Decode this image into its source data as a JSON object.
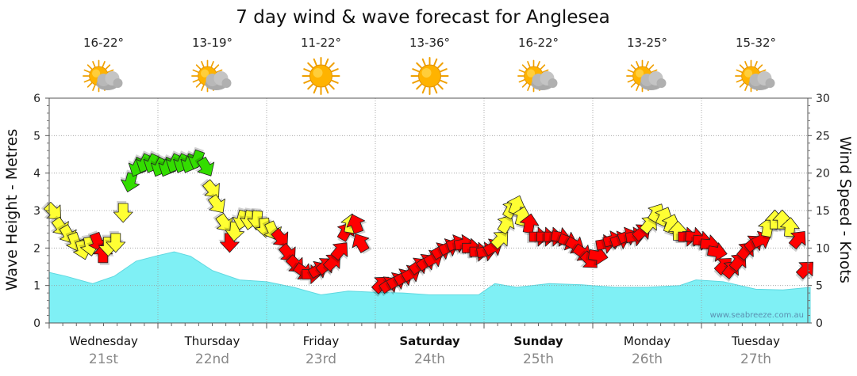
{
  "chart_data": {
    "type": "line",
    "title": "7 day wind & wave forecast for Anglesea",
    "ylabel_left": "Wave Height - Metres",
    "ylabel_right": "Wind Speed - Knots",
    "ylim_left": [
      0,
      6
    ],
    "ylim_right": [
      0,
      30
    ],
    "yticks_left": [
      "0",
      "1",
      "2",
      "3",
      "4",
      "5",
      "6"
    ],
    "yticks_right": [
      "0",
      "5",
      "10",
      "15",
      "20",
      "25",
      "30"
    ],
    "days": [
      {
        "day": "Wednesday",
        "date": "21st",
        "temp": "16-22°",
        "icon": "partly-cloudy",
        "bold": false
      },
      {
        "day": "Thursday",
        "date": "22nd",
        "temp": "13-19°",
        "icon": "partly-cloudy",
        "bold": false
      },
      {
        "day": "Friday",
        "date": "23rd",
        "temp": "11-22°",
        "icon": "sunny",
        "bold": false
      },
      {
        "day": "Saturday",
        "date": "24th",
        "temp": "13-36°",
        "icon": "sunny",
        "bold": true
      },
      {
        "day": "Sunday",
        "date": "25th",
        "temp": "16-22°",
        "icon": "partly-cloudy",
        "bold": true
      },
      {
        "day": "Monday",
        "date": "26th",
        "temp": "13-25°",
        "icon": "partly-cloudy",
        "bold": false
      },
      {
        "day": "Tuesday",
        "date": "27th",
        "temp": "15-32°",
        "icon": "partly-cloudy",
        "bold": false
      }
    ],
    "wave_series": {
      "name": "Wave Height",
      "color": "#7ff0f5",
      "x_days": [
        0,
        0.15,
        0.4,
        0.6,
        0.8,
        1.0,
        1.15,
        1.3,
        1.5,
        1.75,
        2.0,
        2.25,
        2.5,
        2.75,
        3.0,
        3.25,
        3.5,
        3.75,
        3.95,
        4.1,
        4.3,
        4.6,
        4.9,
        5.2,
        5.5,
        5.8,
        5.95,
        6.2,
        6.5,
        6.75,
        7.0
      ],
      "values": [
        1.35,
        1.25,
        1.05,
        1.25,
        1.65,
        1.8,
        1.9,
        1.78,
        1.4,
        1.15,
        1.1,
        0.95,
        0.75,
        0.85,
        0.82,
        0.8,
        0.75,
        0.75,
        0.75,
        1.05,
        0.95,
        1.05,
        1.02,
        0.95,
        0.95,
        1.0,
        1.15,
        1.1,
        0.9,
        0.88,
        0.95
      ]
    },
    "wind_series": {
      "name": "Wind Speed (knots)",
      "legend": {
        "yellow": "#ffff33",
        "red": "#ff0000",
        "green": "#33dd00"
      },
      "points": [
        {
          "t": 0.0,
          "kt": 15,
          "dir": 135,
          "c": "yellow"
        },
        {
          "t": 0.1,
          "kt": 13,
          "dir": 145,
          "c": "yellow"
        },
        {
          "t": 0.2,
          "kt": 12,
          "dir": 150,
          "c": "yellow"
        },
        {
          "t": 0.3,
          "kt": 11,
          "dir": 160,
          "c": "yellow"
        },
        {
          "t": 0.4,
          "kt": 10,
          "dir": 165,
          "c": "yellow"
        },
        {
          "t": 0.5,
          "kt": 10.5,
          "dir": 170,
          "c": "yellow"
        },
        {
          "t": 0.6,
          "kt": 11,
          "dir": 160,
          "c": "red"
        },
        {
          "t": 0.68,
          "kt": 9,
          "dir": 0,
          "c": "red"
        },
        {
          "t": 0.75,
          "kt": 10.5,
          "dir": 180,
          "c": "yellow"
        },
        {
          "t": 0.85,
          "kt": 11,
          "dir": 180,
          "c": "yellow"
        },
        {
          "t": 0.95,
          "kt": 15,
          "dir": 180,
          "c": "yellow"
        },
        {
          "t": 1.05,
          "kt": 19,
          "dir": 195,
          "c": "green"
        },
        {
          "t": 1.15,
          "kt": 21,
          "dir": 205,
          "c": "green"
        },
        {
          "t": 1.25,
          "kt": 21.5,
          "dir": 205,
          "c": "green"
        },
        {
          "t": 1.35,
          "kt": 21.5,
          "dir": 205,
          "c": "green"
        },
        {
          "t": 1.45,
          "kt": 21,
          "dir": 205,
          "c": "green"
        },
        {
          "t": 1.55,
          "kt": 21,
          "dir": 205,
          "c": "green"
        },
        {
          "t": 1.65,
          "kt": 21.5,
          "dir": 205,
          "c": "green"
        },
        {
          "t": 1.75,
          "kt": 21.5,
          "dir": 205,
          "c": "green"
        },
        {
          "t": 1.85,
          "kt": 21.5,
          "dir": 205,
          "c": "green"
        },
        {
          "t": 1.95,
          "kt": 22,
          "dir": 200,
          "c": "green"
        },
        {
          "t": 2.05,
          "kt": 21,
          "dir": 150,
          "c": "green"
        },
        {
          "t": 2.13,
          "kt": 18,
          "dir": 140,
          "c": "yellow"
        },
        {
          "t": 2.2,
          "kt": 16,
          "dir": 145,
          "c": "yellow"
        },
        {
          "t": 2.3,
          "kt": 13.5,
          "dir": 145,
          "c": "yellow"
        },
        {
          "t": 2.38,
          "kt": 11,
          "dir": 180,
          "c": "red"
        },
        {
          "t": 2.45,
          "kt": 12.5,
          "dir": 185,
          "c": "yellow"
        },
        {
          "t": 2.55,
          "kt": 14,
          "dir": 195,
          "c": "yellow"
        },
        {
          "t": 2.65,
          "kt": 14,
          "dir": 190,
          "c": "yellow"
        },
        {
          "t": 2.75,
          "kt": 14,
          "dir": 185,
          "c": "yellow"
        },
        {
          "t": 2.85,
          "kt": 13,
          "dir": 175,
          "c": "yellow"
        },
        {
          "t": 2.95,
          "kt": 12.5,
          "dir": 155,
          "c": "yellow"
        },
        {
          "t": 3.05,
          "kt": 11.5,
          "dir": 140,
          "c": "red"
        },
        {
          "t": 3.15,
          "kt": 9.5,
          "dir": 140,
          "c": "red"
        },
        {
          "t": 3.25,
          "kt": 8,
          "dir": 135,
          "c": "red"
        },
        {
          "t": 3.35,
          "kt": 7,
          "dir": 125,
          "c": "red"
        },
        {
          "t": 3.45,
          "kt": 6.5,
          "dir": 90,
          "c": "red"
        },
        {
          "t": 3.55,
          "kt": 7,
          "dir": 60,
          "c": "red"
        },
        {
          "t": 3.65,
          "kt": 7.5,
          "dir": 50,
          "c": "red"
        },
        {
          "t": 3.75,
          "kt": 8,
          "dir": 45,
          "c": "red"
        },
        {
          "t": 3.85,
          "kt": 9.5,
          "dir": 40,
          "c": "red"
        },
        {
          "t": 3.93,
          "kt": 12,
          "dir": 30,
          "c": "red"
        },
        {
          "t": 4.0,
          "kt": 13,
          "dir": 10,
          "c": "yellow"
        },
        {
          "t": 4.08,
          "kt": 13,
          "dir": 340,
          "c": "red"
        },
        {
          "t": 4.15,
          "kt": 10.5,
          "dir": 330,
          "c": "red"
        },
        {
          "t": 4.4,
          "kt": 5,
          "dir": 45,
          "c": "red"
        },
        {
          "t": 4.5,
          "kt": 5,
          "dir": 55,
          "c": "red"
        },
        {
          "t": 4.6,
          "kt": 5.5,
          "dir": 60,
          "c": "red"
        },
        {
          "t": 4.7,
          "kt": 6,
          "dir": 60,
          "c": "red"
        },
        {
          "t": 4.8,
          "kt": 6.5,
          "dir": 60,
          "c": "red"
        },
        {
          "t": 4.9,
          "kt": 7.5,
          "dir": 55,
          "c": "red"
        },
        {
          "t": 5.0,
          "kt": 8,
          "dir": 55,
          "c": "red"
        },
        {
          "t": 5.1,
          "kt": 8.5,
          "dir": 60,
          "c": "red"
        },
        {
          "t": 5.2,
          "kt": 9.5,
          "dir": 60,
          "c": "red"
        },
        {
          "t": 5.3,
          "kt": 10,
          "dir": 65,
          "c": "red"
        },
        {
          "t": 5.4,
          "kt": 10.5,
          "dir": 70,
          "c": "red"
        },
        {
          "t": 5.5,
          "kt": 10.5,
          "dir": 80,
          "c": "red"
        },
        {
          "t": 5.6,
          "kt": 10,
          "dir": 90,
          "c": "red"
        },
        {
          "t": 5.7,
          "kt": 9.5,
          "dir": 90,
          "c": "red"
        },
        {
          "t": 5.8,
          "kt": 9.5,
          "dir": 80,
          "c": "red"
        },
        {
          "t": 5.9,
          "kt": 10,
          "dir": 60,
          "c": "red"
        },
        {
          "t": 6.0,
          "kt": 11,
          "dir": 45,
          "c": "yellow"
        },
        {
          "t": 6.08,
          "kt": 13,
          "dir": 30,
          "c": "yellow"
        },
        {
          "t": 6.15,
          "kt": 15,
          "dir": 30,
          "c": "yellow"
        },
        {
          "t": 6.22,
          "kt": 15.5,
          "dir": 20,
          "c": "yellow"
        },
        {
          "t": 6.3,
          "kt": 14,
          "dir": 15,
          "c": "yellow"
        },
        {
          "t": 6.4,
          "kt": 13,
          "dir": 10,
          "c": "red"
        },
        {
          "t": 6.5,
          "kt": 11.5,
          "dir": 90,
          "c": "red"
        },
        {
          "t": 6.6,
          "kt": 11.5,
          "dir": 90,
          "c": "red"
        },
        {
          "t": 6.7,
          "kt": 11.5,
          "dir": 90,
          "c": "red"
        },
        {
          "t": 6.8,
          "kt": 11.5,
          "dir": 100,
          "c": "red"
        },
        {
          "t": 6.9,
          "kt": 11,
          "dir": 110,
          "c": "red"
        },
        {
          "t": 7.0,
          "kt": 10.5,
          "dir": 120,
          "c": "red"
        },
        {
          "t": 7.1,
          "kt": 9.5,
          "dir": 125,
          "c": "red"
        },
        {
          "t": 7.2,
          "kt": 8.5,
          "dir": 135,
          "c": "red"
        },
        {
          "t": 7.3,
          "kt": 9,
          "dir": 100,
          "c": "red"
        },
        {
          "t": 7.4,
          "kt": 10.5,
          "dir": 80,
          "c": "red"
        },
        {
          "t": 7.5,
          "kt": 11,
          "dir": 75,
          "c": "red"
        },
        {
          "t": 7.6,
          "kt": 11,
          "dir": 70,
          "c": "red"
        },
        {
          "t": 7.7,
          "kt": 11.5,
          "dir": 70,
          "c": "red"
        },
        {
          "t": 7.8,
          "kt": 11.5,
          "dir": 80,
          "c": "red"
        },
        {
          "t": 7.9,
          "kt": 12,
          "dir": 50,
          "c": "red"
        },
        {
          "t": 8.0,
          "kt": 13,
          "dir": 40,
          "c": "yellow"
        },
        {
          "t": 8.1,
          "kt": 14.5,
          "dir": 30,
          "c": "yellow"
        },
        {
          "t": 8.2,
          "kt": 14,
          "dir": 25,
          "c": "yellow"
        },
        {
          "t": 8.3,
          "kt": 13,
          "dir": 20,
          "c": "yellow"
        },
        {
          "t": 8.4,
          "kt": 12,
          "dir": 0,
          "c": "yellow"
        },
        {
          "t": 8.5,
          "kt": 11.5,
          "dir": 90,
          "c": "red"
        },
        {
          "t": 8.6,
          "kt": 11.5,
          "dir": 95,
          "c": "red"
        },
        {
          "t": 8.7,
          "kt": 11,
          "dir": 95,
          "c": "red"
        },
        {
          "t": 8.8,
          "kt": 10.5,
          "dir": 95,
          "c": "red"
        },
        {
          "t": 8.9,
          "kt": 9.5,
          "dir": 100,
          "c": "red"
        },
        {
          "t": 9.0,
          "kt": 7.5,
          "dir": 45,
          "c": "red"
        },
        {
          "t": 9.1,
          "kt": 7,
          "dir": 40,
          "c": "red"
        },
        {
          "t": 9.2,
          "kt": 8,
          "dir": 40,
          "c": "red"
        },
        {
          "t": 9.3,
          "kt": 9.5,
          "dir": 40,
          "c": "red"
        },
        {
          "t": 9.4,
          "kt": 10.5,
          "dir": 50,
          "c": "red"
        },
        {
          "t": 9.5,
          "kt": 11,
          "dir": 65,
          "c": "red"
        },
        {
          "t": 9.6,
          "kt": 12.5,
          "dir": 10,
          "c": "yellow"
        },
        {
          "t": 9.7,
          "kt": 13.5,
          "dir": 0,
          "c": "yellow"
        },
        {
          "t": 9.8,
          "kt": 13.5,
          "dir": 0,
          "c": "yellow"
        },
        {
          "t": 9.9,
          "kt": 12.5,
          "dir": 5,
          "c": "yellow"
        },
        {
          "t": 10.0,
          "kt": 11,
          "dir": 40,
          "c": "red"
        },
        {
          "t": 10.1,
          "kt": 7,
          "dir": 45,
          "c": "red"
        }
      ]
    },
    "watermark": "www.seabreeze.com.au"
  }
}
